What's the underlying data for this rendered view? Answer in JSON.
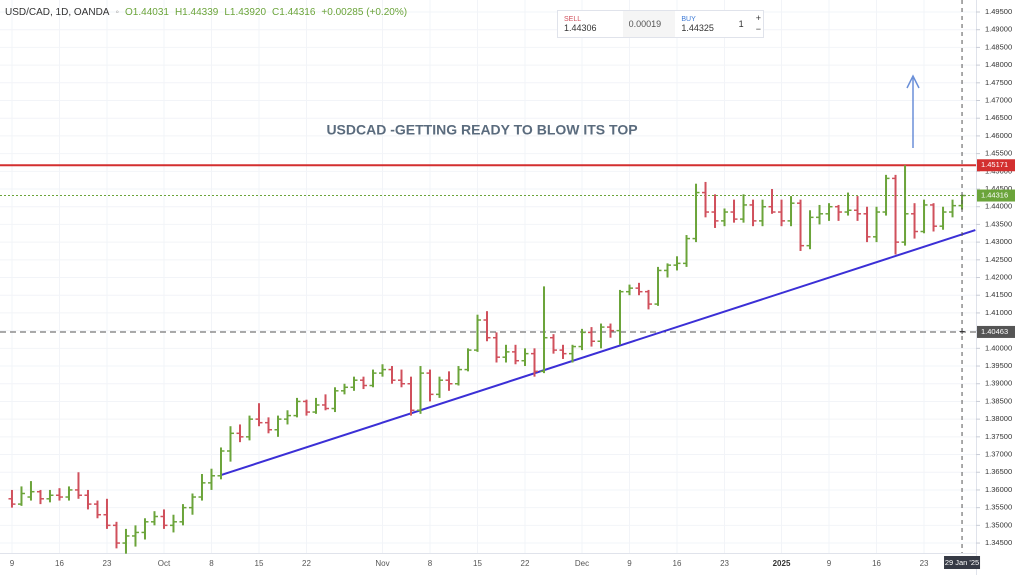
{
  "header": {
    "symbol": "USD/CAD, 1D, OANDA",
    "o": "O1.44031",
    "h": "H1.44339",
    "l": "L1.43920",
    "c": "C1.44316",
    "change": "+0.00285 (+0.20%)"
  },
  "trade_widget": {
    "sell_label": "SELL",
    "sell_price": "1.44306",
    "spread": "0.00019",
    "buy_label": "BUY",
    "buy_price": "1.44325",
    "quantity": "1",
    "plus": "+",
    "minus": "−"
  },
  "chart_data": {
    "type": "ohlc",
    "annotation": "USDCAD -GETTING READY TO BLOW ITS TOP",
    "up_color": "#6ba43a",
    "down_color": "#d0505c",
    "grid": true,
    "categories": [
      "9",
      null,
      null,
      null,
      null,
      "16",
      null,
      null,
      null,
      null,
      "23",
      null,
      null,
      null,
      null,
      null,
      "Oct",
      null,
      null,
      null,
      null,
      "8",
      null,
      null,
      null,
      null,
      "15",
      null,
      null,
      null,
      null,
      "22",
      null,
      null,
      null,
      null,
      null,
      null,
      null,
      "Nov",
      null,
      null,
      null,
      null,
      "8",
      null,
      null,
      null,
      null,
      "15",
      null,
      null,
      null,
      null,
      "22",
      null,
      null,
      null,
      null,
      null,
      "Dec",
      null,
      null,
      null,
      null,
      "9",
      null,
      null,
      null,
      null,
      "16",
      null,
      null,
      null,
      null,
      "23",
      null,
      null,
      null,
      null,
      null,
      "2025",
      null,
      null,
      null,
      null,
      "9",
      null,
      null,
      null,
      null,
      "16",
      null,
      null,
      null,
      null,
      "23",
      null,
      null,
      null,
      null
    ],
    "open": [
      1.3575,
      1.356,
      1.358,
      1.3595,
      1.3575,
      1.3585,
      1.358,
      1.36,
      1.3585,
      1.356,
      1.353,
      1.35,
      1.345,
      1.347,
      1.348,
      1.351,
      1.3525,
      1.35,
      1.351,
      1.355,
      1.358,
      1.362,
      1.364,
      1.371,
      1.376,
      1.375,
      1.38,
      1.379,
      1.377,
      1.38,
      1.381,
      1.385,
      1.382,
      1.384,
      1.383,
      1.388,
      1.389,
      1.391,
      1.3895,
      1.393,
      1.394,
      1.391,
      1.39,
      1.3825,
      1.393,
      1.387,
      1.391,
      1.39,
      1.394,
      1.3995,
      1.408,
      1.403,
      1.3975,
      1.399,
      1.3965,
      1.3985,
      1.3935,
      1.403,
      1.3995,
      1.3985,
      1.4005,
      1.4045,
      1.402,
      1.406,
      1.405,
      1.416,
      1.417,
      1.416,
      1.4125,
      1.422,
      1.4235,
      1.424,
      1.431,
      1.444,
      1.4385,
      1.436,
      1.4385,
      1.4365,
      1.4405,
      1.436,
      1.44,
      1.4385,
      1.436,
      1.441,
      1.429,
      1.437,
      1.438,
      1.44,
      1.4385,
      1.439,
      1.438,
      1.4315,
      1.4385,
      1.448,
      1.43,
      1.438,
      1.433,
      1.4405,
      1.4345,
      1.4385,
      1.44031
    ],
    "high": [
      1.36,
      1.361,
      1.3625,
      1.36,
      1.36,
      1.3605,
      1.361,
      1.365,
      1.36,
      1.357,
      1.3575,
      1.351,
      1.349,
      1.35,
      1.352,
      1.354,
      1.3545,
      1.353,
      1.356,
      1.359,
      1.3645,
      1.366,
      1.372,
      1.378,
      1.3785,
      1.381,
      1.3845,
      1.3805,
      1.381,
      1.3825,
      1.386,
      1.3855,
      1.386,
      1.387,
      1.389,
      1.39,
      1.392,
      1.392,
      1.394,
      1.3955,
      1.395,
      1.394,
      1.392,
      1.395,
      1.394,
      1.392,
      1.3935,
      1.395,
      1.4,
      1.4095,
      1.4105,
      1.4045,
      1.401,
      1.401,
      1.4,
      1.4,
      1.4175,
      1.404,
      1.401,
      1.401,
      1.4055,
      1.406,
      1.407,
      1.407,
      1.4165,
      1.418,
      1.4185,
      1.4165,
      1.423,
      1.424,
      1.426,
      1.432,
      1.4465,
      1.447,
      1.4435,
      1.4395,
      1.442,
      1.4435,
      1.442,
      1.442,
      1.445,
      1.442,
      1.443,
      1.442,
      1.439,
      1.4405,
      1.441,
      1.4405,
      1.444,
      1.443,
      1.44,
      1.44,
      1.449,
      1.449,
      1.4517,
      1.441,
      1.442,
      1.441,
      1.44,
      1.442,
      1.44339
    ],
    "low": [
      1.355,
      1.3555,
      1.357,
      1.356,
      1.3565,
      1.357,
      1.357,
      1.3575,
      1.3545,
      1.352,
      1.349,
      1.3435,
      1.342,
      1.344,
      1.346,
      1.35,
      1.349,
      1.348,
      1.35,
      1.353,
      1.357,
      1.36,
      1.363,
      1.368,
      1.3735,
      1.374,
      1.378,
      1.376,
      1.375,
      1.3785,
      1.3805,
      1.381,
      1.3815,
      1.3825,
      1.382,
      1.387,
      1.388,
      1.3885,
      1.389,
      1.392,
      1.39,
      1.389,
      1.381,
      1.3815,
      1.385,
      1.386,
      1.388,
      1.3895,
      1.3935,
      1.399,
      1.402,
      1.396,
      1.396,
      1.3955,
      1.395,
      1.392,
      1.393,
      1.3985,
      1.397,
      1.396,
      1.3995,
      1.4005,
      1.4,
      1.403,
      1.401,
      1.415,
      1.415,
      1.411,
      1.412,
      1.42,
      1.422,
      1.423,
      1.43,
      1.437,
      1.434,
      1.4345,
      1.4355,
      1.4355,
      1.4345,
      1.4345,
      1.438,
      1.4345,
      1.4345,
      1.4275,
      1.428,
      1.435,
      1.436,
      1.436,
      1.4375,
      1.436,
      1.43,
      1.43,
      1.4375,
      1.4265,
      1.429,
      1.431,
      1.4325,
      1.433,
      1.4335,
      1.437,
      1.4392
    ],
    "close": [
      1.356,
      1.359,
      1.3595,
      1.3575,
      1.3585,
      1.358,
      1.36,
      1.3585,
      1.356,
      1.353,
      1.35,
      1.345,
      1.347,
      1.348,
      1.351,
      1.3525,
      1.35,
      1.351,
      1.355,
      1.358,
      1.362,
      1.364,
      1.371,
      1.376,
      1.375,
      1.38,
      1.379,
      1.377,
      1.38,
      1.381,
      1.385,
      1.382,
      1.384,
      1.383,
      1.388,
      1.389,
      1.391,
      1.3895,
      1.393,
      1.394,
      1.391,
      1.39,
      1.3825,
      1.393,
      1.387,
      1.391,
      1.39,
      1.394,
      1.3995,
      1.408,
      1.403,
      1.3975,
      1.399,
      1.3965,
      1.3985,
      1.3935,
      1.403,
      1.3995,
      1.3985,
      1.4005,
      1.4045,
      1.402,
      1.406,
      1.405,
      1.416,
      1.417,
      1.416,
      1.4125,
      1.422,
      1.4235,
      1.424,
      1.431,
      1.444,
      1.4385,
      1.436,
      1.4385,
      1.4365,
      1.4405,
      1.436,
      1.44,
      1.4385,
      1.436,
      1.441,
      1.429,
      1.437,
      1.438,
      1.44,
      1.4385,
      1.439,
      1.438,
      1.4315,
      1.4385,
      1.448,
      1.43,
      1.438,
      1.433,
      1.4405,
      1.4345,
      1.4385,
      1.4403,
      1.44316
    ],
    "xlim": [
      -1.26,
      101.47
    ],
    "ylim": [
      1.34219,
      1.49839
    ],
    "yticks": [
      {
        "value": 1.345,
        "label": "1.34500"
      },
      {
        "value": 1.35,
        "label": "1.35000"
      },
      {
        "value": 1.355,
        "label": "1.35500"
      },
      {
        "value": 1.36,
        "label": "1.36000"
      },
      {
        "value": 1.365,
        "label": "1.36500"
      },
      {
        "value": 1.37,
        "label": "1.37000"
      },
      {
        "value": 1.375,
        "label": "1.37500"
      },
      {
        "value": 1.38,
        "label": "1.38000"
      },
      {
        "value": 1.385,
        "label": "1.38500"
      },
      {
        "value": 1.39,
        "label": "1.39000"
      },
      {
        "value": 1.395,
        "label": "1.39500"
      },
      {
        "value": 1.4,
        "label": "1.40000"
      },
      {
        "value": 1.405,
        "label": "1.40500"
      },
      {
        "value": 1.41,
        "label": "1.41000"
      },
      {
        "value": 1.415,
        "label": "1.41500"
      },
      {
        "value": 1.42,
        "label": "1.42000"
      },
      {
        "value": 1.425,
        "label": "1.42500"
      },
      {
        "value": 1.43,
        "label": "1.43000"
      },
      {
        "value": 1.435,
        "label": "1.43500"
      },
      {
        "value": 1.44,
        "label": "1.44000"
      },
      {
        "value": 1.445,
        "label": "1.44500"
      },
      {
        "value": 1.45,
        "label": "1.45000"
      },
      {
        "value": 1.455,
        "label": "1.45500"
      },
      {
        "value": 1.46,
        "label": "1.46000"
      },
      {
        "value": 1.465,
        "label": "1.46500"
      },
      {
        "value": 1.47,
        "label": "1.47000"
      },
      {
        "value": 1.475,
        "label": "1.47500"
      },
      {
        "value": 1.48,
        "label": "1.48000"
      },
      {
        "value": 1.485,
        "label": "1.48500"
      },
      {
        "value": 1.49,
        "label": "1.49000"
      },
      {
        "value": 1.495,
        "label": "1.49500"
      }
    ],
    "levels": [
      {
        "value": 1.45171,
        "color": "#d32f2f",
        "style": "solid"
      },
      {
        "value": 1.44316,
        "color": "#6ba43a",
        "style": "dotted"
      },
      {
        "value": 1.40463,
        "color": "#555555",
        "style": "dashed"
      }
    ],
    "trend_line": {
      "x": [
        22,
        101.4
      ],
      "y": [
        1.3642,
        1.4334
      ],
      "color": "#3b2fd6"
    },
    "crosshair_label": "29 Jan '25"
  }
}
